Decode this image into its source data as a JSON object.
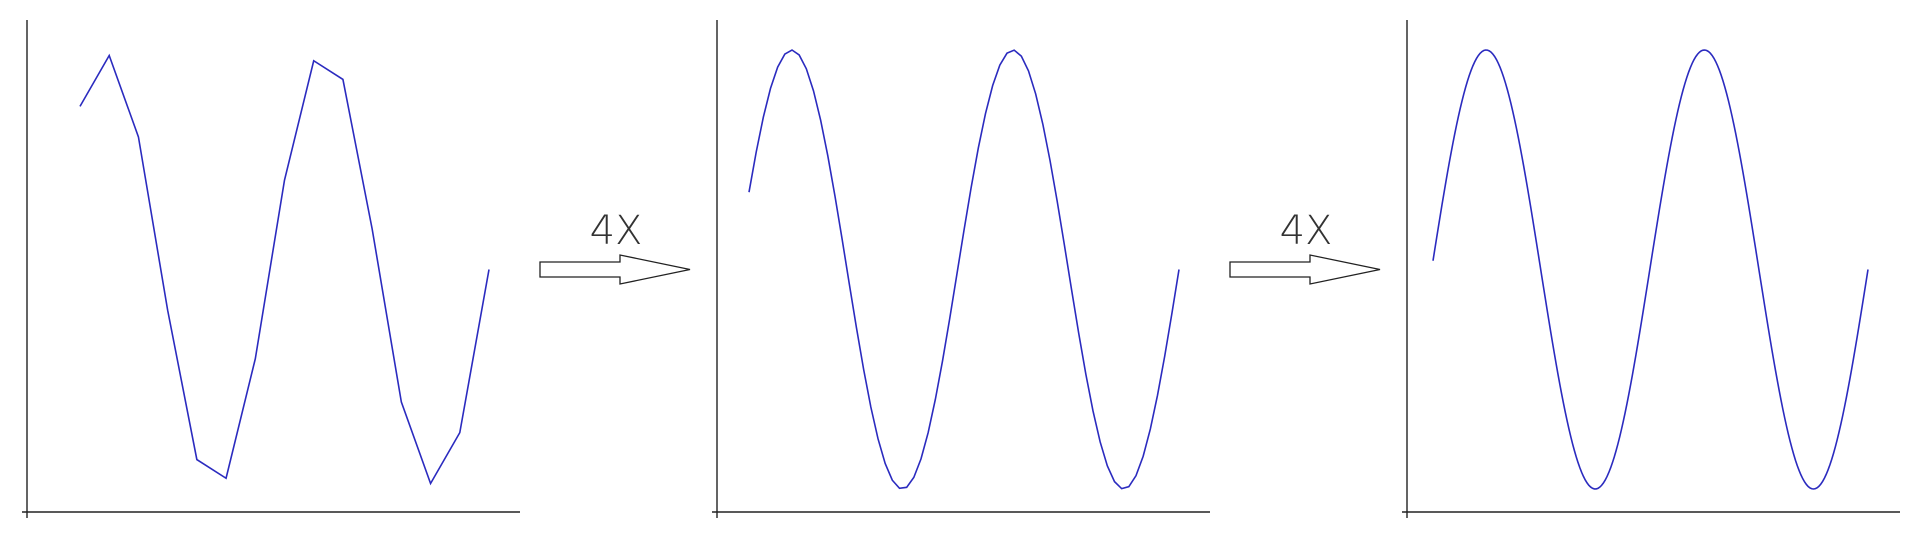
{
  "colors": {
    "curve": "#2b2bbf",
    "axis": "#222222",
    "background": "#ffffff"
  },
  "arrows": [
    {
      "label": "4X"
    },
    {
      "label": "4X"
    }
  ],
  "chart_data": [
    {
      "type": "line",
      "title": "",
      "samples": 15,
      "x": [
        0,
        1,
        2,
        3,
        4,
        5,
        6,
        7,
        8,
        9,
        10,
        11,
        12,
        13,
        14
      ],
      "values": [
        0.743,
        0.975,
        0.604,
        -0.185,
        -0.866,
        -0.951,
        -0.407,
        0.407,
        0.951,
        0.866,
        0.185,
        -0.604,
        -0.975,
        -0.743,
        0.0
      ],
      "grid": false
    },
    {
      "type": "line",
      "title": "",
      "samples": 60,
      "upsample_factor": 4,
      "grid": false
    },
    {
      "type": "line",
      "title": "",
      "samples": 240,
      "upsample_factor": 4,
      "grid": false
    }
  ]
}
